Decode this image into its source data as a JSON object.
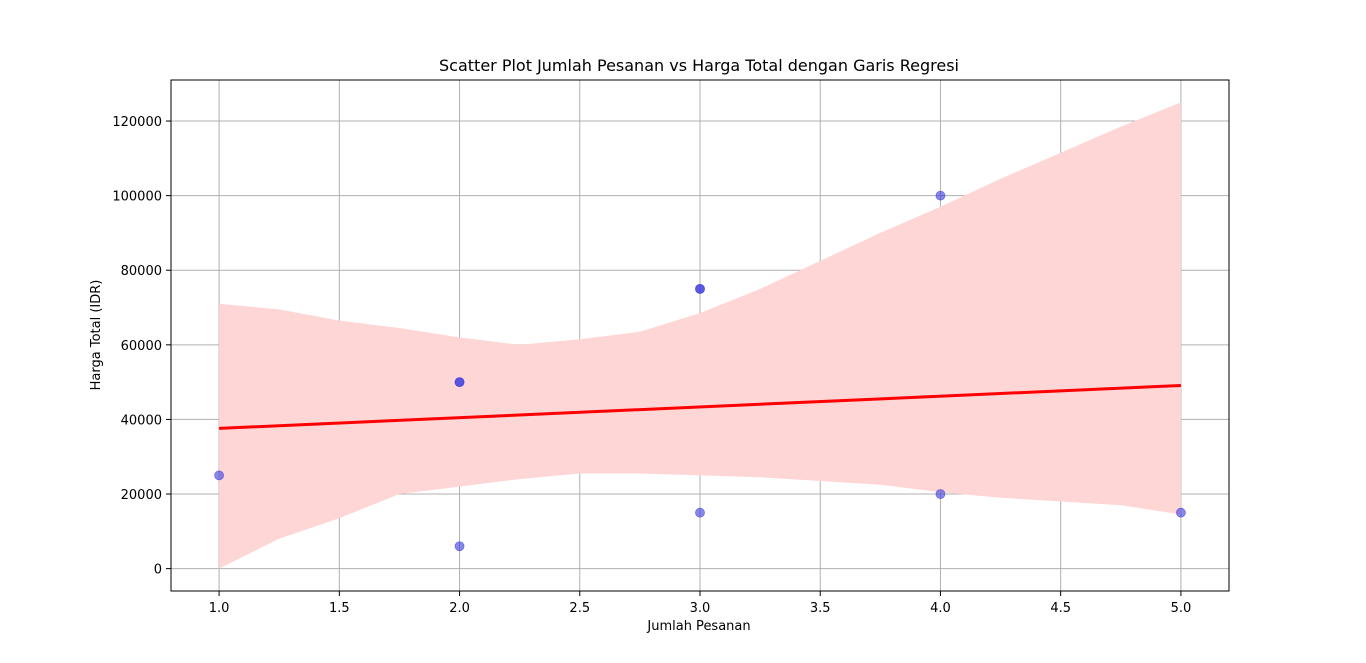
{
  "chart_data": {
    "type": "scatter",
    "title": "Scatter Plot Jumlah Pesanan vs Harga Total dengan Garis Regresi",
    "xlabel": "Jumlah Pesanan",
    "ylabel": "Harga Total (IDR)",
    "xlim": [
      0.8,
      5.2
    ],
    "ylim": [
      -6000,
      131000
    ],
    "xticks": [
      1.0,
      1.5,
      2.0,
      2.5,
      3.0,
      3.5,
      4.0,
      4.5,
      5.0
    ],
    "xtick_labels": [
      "1.0",
      "1.5",
      "2.0",
      "2.5",
      "3.0",
      "3.5",
      "4.0",
      "4.5",
      "5.0"
    ],
    "yticks": [
      0,
      20000,
      40000,
      60000,
      80000,
      100000,
      120000
    ],
    "ytick_labels": [
      "0",
      "20000",
      "40000",
      "60000",
      "80000",
      "100000",
      "120000"
    ],
    "grid": true,
    "points": {
      "x": [
        1,
        2,
        2,
        2,
        3,
        3,
        3,
        4,
        4,
        5
      ],
      "y": [
        25000,
        50000,
        50000,
        6000,
        75000,
        75000,
        15000,
        100000,
        20000,
        15000
      ]
    },
    "regression_line": {
      "x": [
        1.0,
        5.0
      ],
      "y": [
        37600,
        49100
      ]
    },
    "confidence_band": {
      "x": [
        1.0,
        1.25,
        1.5,
        1.75,
        2.0,
        2.25,
        2.5,
        2.75,
        3.0,
        3.25,
        3.5,
        3.75,
        4.0,
        4.25,
        4.5,
        4.75,
        5.0
      ],
      "upper": [
        71000,
        69500,
        66500,
        64500,
        62000,
        60000,
        61500,
        63500,
        68500,
        75000,
        82500,
        90000,
        97000,
        104500,
        111500,
        118500,
        125000
      ],
      "lower": [
        0,
        8000,
        13500,
        20000,
        22000,
        24000,
        25500,
        25500,
        25000,
        24500,
        23500,
        22500,
        20500,
        19000,
        18000,
        17000,
        14500
      ]
    },
    "colors": {
      "points": "#3b3bde",
      "regression_line": "#ff0000",
      "band": "#ffd6d6",
      "grid": "#b0b0b0"
    }
  }
}
